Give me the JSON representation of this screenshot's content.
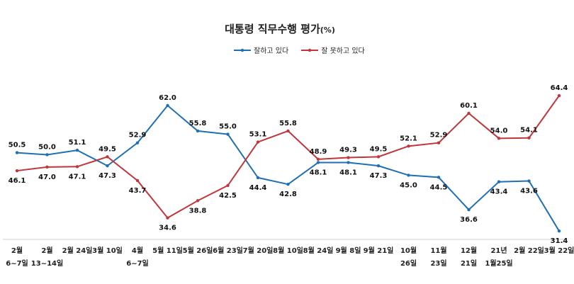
{
  "chart_data": {
    "type": "line",
    "title": "대통령 직무수행 평가",
    "title_unit": "(%)",
    "legend_position": "top-center",
    "grid": false,
    "ylim": [
      25,
      70
    ],
    "categories": [
      [
        "2월",
        "6~7일"
      ],
      [
        "2월",
        "13~14일"
      ],
      [
        "2월 24일"
      ],
      [
        "3월 10일"
      ],
      [
        "4월",
        "6~7일"
      ],
      [
        "5월 11일"
      ],
      [
        "5월 26일"
      ],
      [
        "6월 23일"
      ],
      [
        "7월 20일"
      ],
      [
        "8월 10일"
      ],
      [
        "8월 24일"
      ],
      [
        "9월 8일"
      ],
      [
        "9월 21일"
      ],
      [
        "10월",
        "26일"
      ],
      [
        "11월",
        "23일"
      ],
      [
        "12월",
        "21일"
      ],
      [
        "21년",
        "1월25일"
      ],
      [
        "2월 22일"
      ],
      [
        "3월 22일"
      ]
    ],
    "series": [
      {
        "name": "잘하고 있다",
        "color": "#1f6fb5",
        "values": [
          50.5,
          50.0,
          51.1,
          47.3,
          52.9,
          62.0,
          55.8,
          55.0,
          44.4,
          42.8,
          48.1,
          48.1,
          47.3,
          45.0,
          44.5,
          36.6,
          43.4,
          43.6,
          31.4
        ],
        "label_labels": [
          "50.5",
          "50.0",
          "51.1",
          "47.3",
          "52.9",
          "62.0",
          "55.8",
          "55.0",
          "44.4",
          "42.8",
          "48.1",
          "48.1",
          "47.3",
          "45.0",
          "44.5",
          "36.6",
          "43.4",
          "43.6",
          "31.4"
        ]
      },
      {
        "name": "잘 못하고 있다",
        "color": "#c0363a",
        "values": [
          46.1,
          47.0,
          47.1,
          49.5,
          43.7,
          34.6,
          38.8,
          42.5,
          53.1,
          55.8,
          48.9,
          49.3,
          49.5,
          52.1,
          52.9,
          60.1,
          54.0,
          54.1,
          64.4
        ],
        "label_labels": [
          "46.1",
          "47.0",
          "47.1",
          "49.5",
          "43.7",
          "34.6",
          "38.8",
          "42.5",
          "53.1",
          "55.8",
          "48.9",
          "49.3",
          "49.5",
          "52.1",
          "52.9",
          "60.1",
          "54.0",
          "54.1",
          "64.4"
        ]
      }
    ]
  }
}
